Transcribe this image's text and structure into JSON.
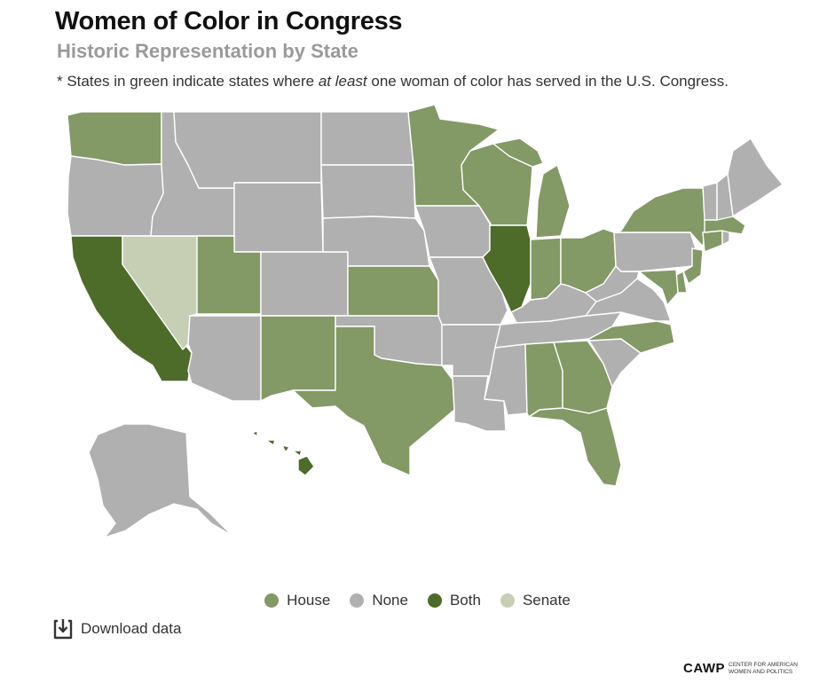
{
  "title": "Women of Color in Congress",
  "subtitle": "Historic Representation by State",
  "note": {
    "prefix": "* States in green indicate states where ",
    "emphasis": "at least",
    "suffix": " one woman of color has served in the U.S. Congress."
  },
  "colors": {
    "House": "#839966",
    "None": "#b0b0b0",
    "Both": "#4d6b29",
    "Senate": "#c6cfb4"
  },
  "legend": [
    {
      "label": "House",
      "key": "House"
    },
    {
      "label": "None",
      "key": "None"
    },
    {
      "label": "Both",
      "key": "Both"
    },
    {
      "label": "Senate",
      "key": "Senate"
    }
  ],
  "download_label": "Download data",
  "logo": {
    "mark": "CAWP",
    "text_line1": "CENTER FOR AMERICAN",
    "text_line2": "WOMEN AND POLITICS"
  },
  "map_data": {
    "WA": "House",
    "OR": "None",
    "CA": "Both",
    "NV": "Senate",
    "ID": "None",
    "MT": "None",
    "WY": "None",
    "UT": "House",
    "AZ": "None",
    "CO": "None",
    "NM": "House",
    "ND": "None",
    "SD": "None",
    "NE": "None",
    "KS": "House",
    "OK": "None",
    "TX": "House",
    "MN": "House",
    "IA": "None",
    "MO": "None",
    "AR": "None",
    "LA": "None",
    "WI": "House",
    "IL": "Both",
    "MI": "House",
    "IN": "House",
    "OH": "House",
    "KY": "None",
    "TN": "None",
    "MS": "None",
    "AL": "House",
    "GA": "House",
    "FL": "House",
    "SC": "None",
    "NC": "House",
    "VA": "None",
    "WV": "None",
    "PA": "None",
    "NY": "House",
    "NJ": "House",
    "DE": "House",
    "MD": "House",
    "CT": "House",
    "RI": "None",
    "MA": "House",
    "VT": "None",
    "NH": "None",
    "ME": "None",
    "AK": "None",
    "HI": "Both"
  }
}
